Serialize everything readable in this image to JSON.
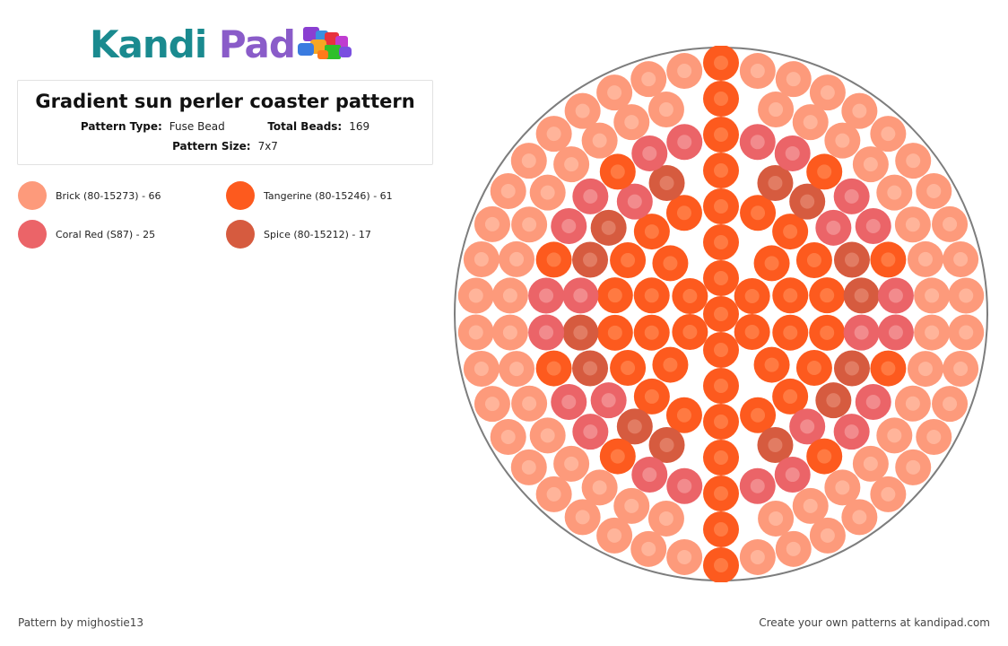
{
  "logo": {
    "text_kandi": "Kandi",
    "text_pad": "Pad"
  },
  "pattern": {
    "title": "Gradient sun perler coaster pattern",
    "type_label": "Pattern Type:",
    "type_value": "Fuse Bead",
    "total_label": "Total Beads:",
    "total_value": "169",
    "size_label": "Pattern Size:",
    "size_value": "7x7"
  },
  "legend": [
    {
      "label": "Brick (80-15273) - 66",
      "color": "#fd9a7b"
    },
    {
      "label": "Tangerine (80-15246) - 61",
      "color": "#fd5a1e"
    },
    {
      "label": "Coral Red (S87) - 25",
      "color": "#eb6468"
    },
    {
      "label": "Spice (80-15212) - 17",
      "color": "#d65b3f"
    }
  ],
  "footer": {
    "credit": "Pattern by mighostie13",
    "cta": "Create your own patterns at kandipad.com"
  }
}
